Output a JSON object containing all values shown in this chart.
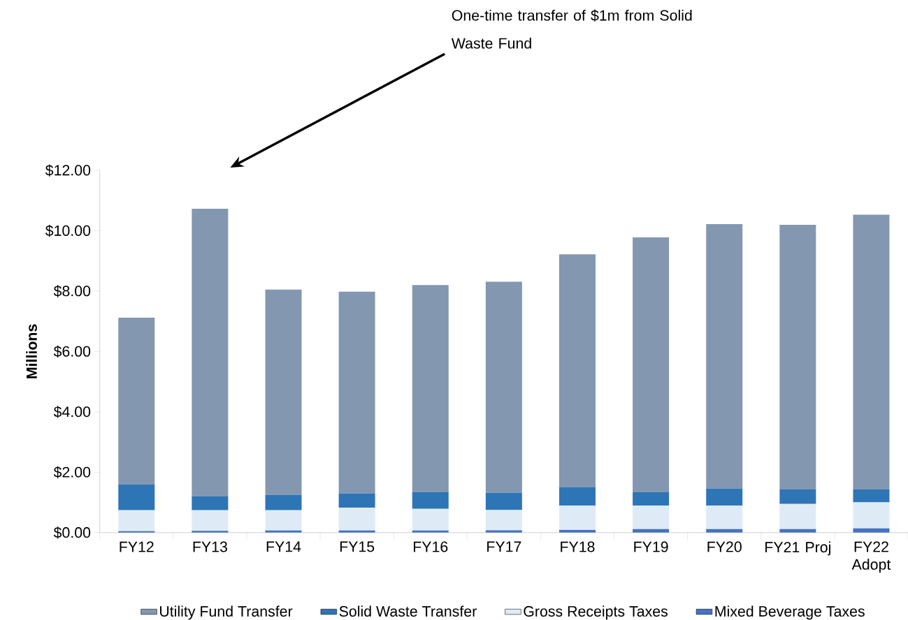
{
  "chart_data": {
    "type": "bar",
    "stacked": true,
    "ylabel": "Millions",
    "legend": "bottom",
    "categories": [
      "FY12",
      "FY13",
      "FY14",
      "FY15",
      "FY16",
      "FY17",
      "FY18",
      "FY19",
      "FY20",
      "FY21 Proj",
      "FY22 Adopt"
    ],
    "series": [
      {
        "name": "Mixed Beverage Taxes",
        "color": "#4472c4",
        "values": [
          0.05,
          0.06,
          0.07,
          0.07,
          0.07,
          0.08,
          0.09,
          0.12,
          0.12,
          0.12,
          0.14
        ]
      },
      {
        "name": "Gross Receipts Taxes",
        "color": "#deebf7",
        "values": [
          0.69,
          0.68,
          0.67,
          0.76,
          0.72,
          0.67,
          0.81,
          0.78,
          0.78,
          0.83,
          0.86
        ]
      },
      {
        "name": "Solid Waste Transfer",
        "color": "#2e75b6",
        "values": [
          0.86,
          0.46,
          0.51,
          0.47,
          0.55,
          0.57,
          0.6,
          0.44,
          0.56,
          0.48,
          0.43
        ]
      },
      {
        "name": "Utility Fund Transfer",
        "color": "#8497b0",
        "values": [
          5.52,
          9.53,
          6.8,
          6.68,
          6.86,
          6.99,
          7.72,
          8.44,
          8.76,
          8.77,
          9.1
        ]
      }
    ],
    "ylim": [
      0,
      12
    ],
    "yticks": [
      {
        "value": 0,
        "label": "$0.00"
      },
      {
        "value": 2,
        "label": "$2.00"
      },
      {
        "value": 4,
        "label": "$4.00"
      },
      {
        "value": 6,
        "label": "$6.00"
      },
      {
        "value": 8,
        "label": "$8.00"
      },
      {
        "value": 10,
        "label": "$10.00"
      },
      {
        "value": 12,
        "label": "$12.00"
      }
    ],
    "annotations": [
      "One-time transfer of $1m from Solid Waste Fund"
    ]
  }
}
